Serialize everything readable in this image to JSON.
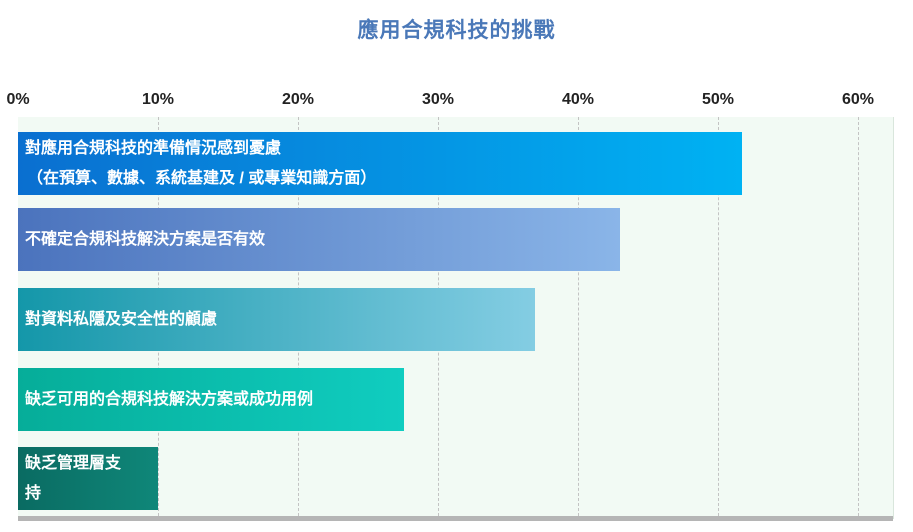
{
  "chart_data": {
    "type": "bar",
    "orientation": "horizontal",
    "title": "應用合規科技的挑戰",
    "xlabel": "",
    "ylabel": "",
    "x_axis_position": "top",
    "xlim": [
      0,
      62
    ],
    "ticks": [
      0,
      10,
      20,
      30,
      40,
      50,
      60
    ],
    "tick_labels": [
      "0%",
      "10%",
      "20%",
      "30%",
      "40%",
      "50%",
      "60%"
    ],
    "grid": true,
    "legend": "none",
    "categories": [
      [
        "對應用合規科技的準備情況感到憂慮",
        "（在預算、數據、系統基建及 / 或專業知識方面）"
      ],
      [
        "不確定合規科技解決方案是否有效"
      ],
      [
        "對資料私隱及安全性的顧慮"
      ],
      [
        "缺乏可用的合規科技解決方案或成功用例"
      ],
      [
        "缺乏管理層支",
        "持"
      ]
    ],
    "values": [
      51.7,
      43.0,
      36.9,
      27.6,
      10.0
    ],
    "bar_colors": [
      [
        "#0a6fd0",
        "#00b2f3"
      ],
      [
        "#4b73bd",
        "#8ab5e8"
      ],
      [
        "#1497a9",
        "#84cde3"
      ],
      [
        "#06ad99",
        "#10cdc0"
      ],
      [
        "#0a6b62",
        "#0f8779"
      ]
    ]
  }
}
